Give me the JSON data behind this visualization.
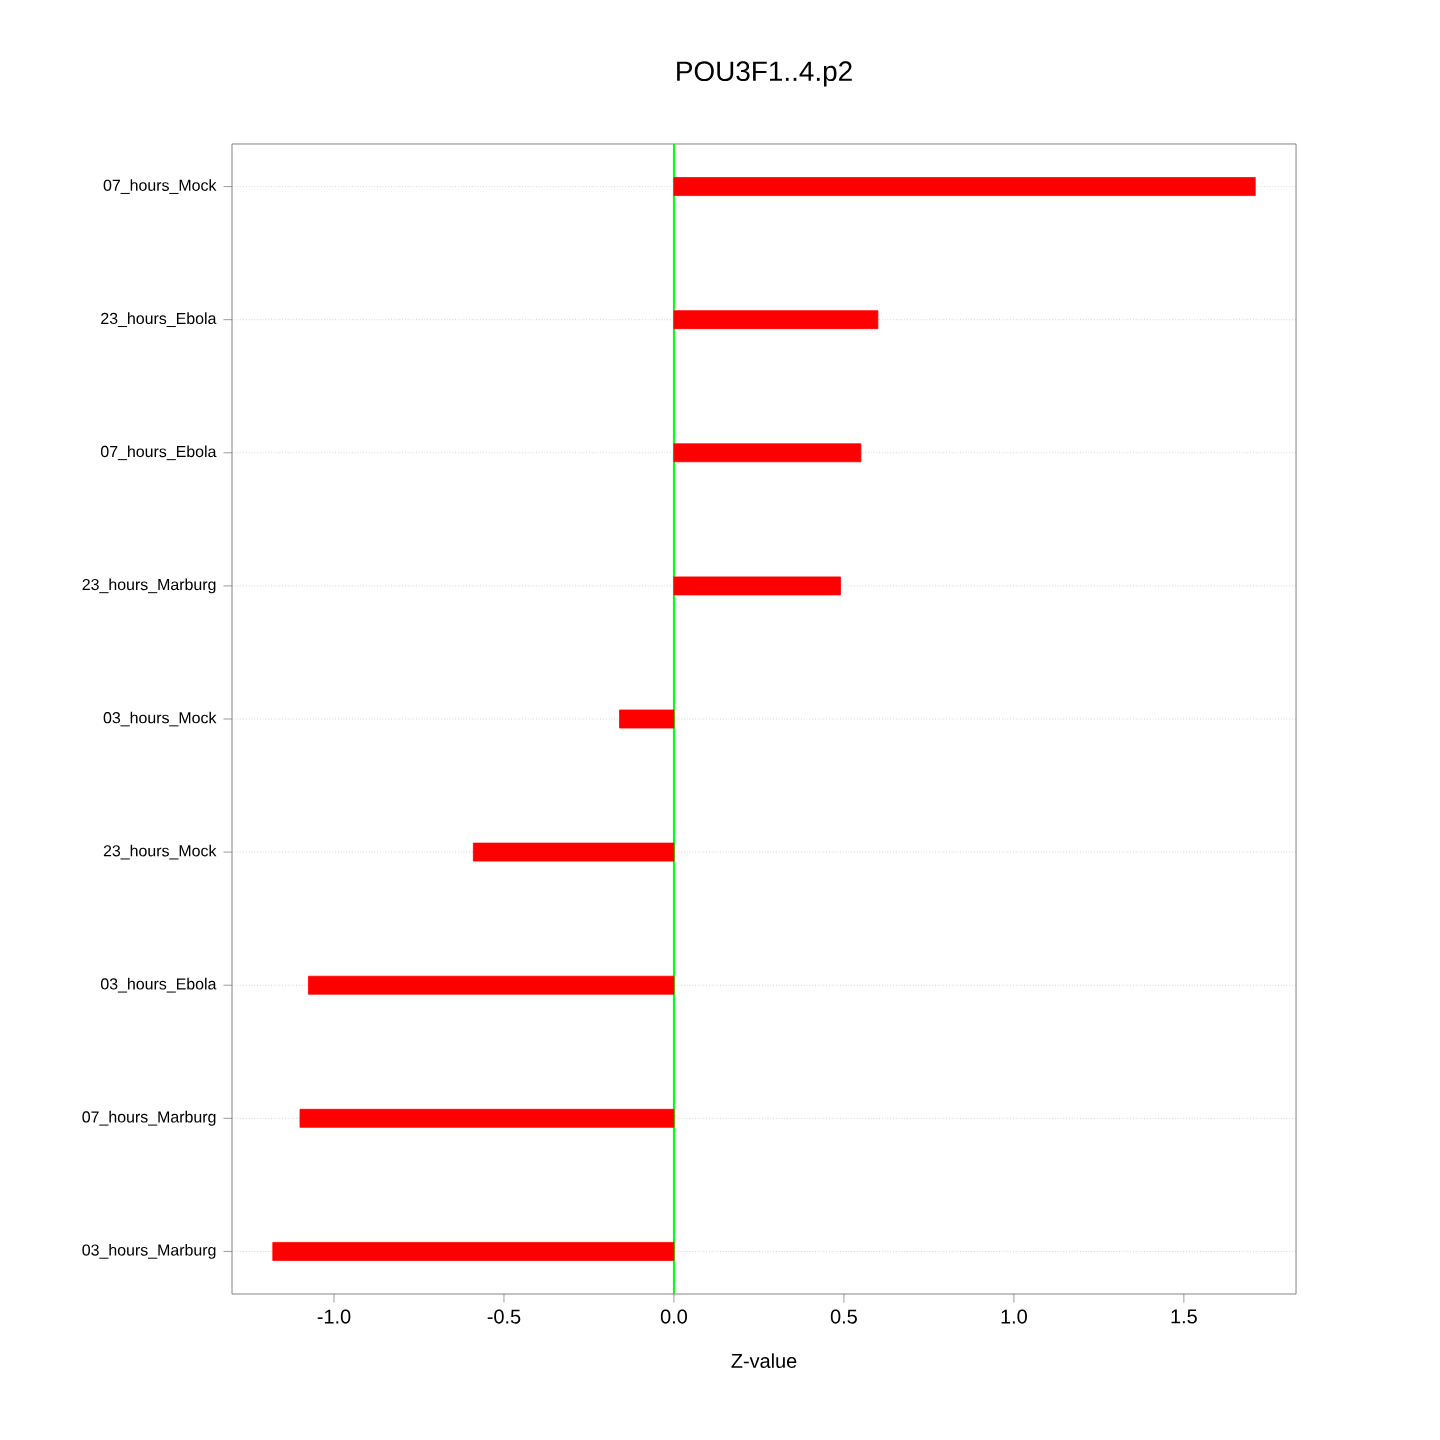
{
  "chart_data": {
    "type": "bar",
    "orientation": "horizontal",
    "title": "POU3F1..4.p2",
    "xlabel": "Z-value",
    "categories": [
      "07_hours_Mock",
      "23_hours_Ebola",
      "07_hours_Ebola",
      "23_hours_Marburg",
      "03_hours_Mock",
      "23_hours_Mock",
      "03_hours_Ebola",
      "07_hours_Marburg",
      "03_hours_Marburg"
    ],
    "values": [
      1.71,
      0.6,
      0.55,
      0.49,
      -0.16,
      -0.59,
      -1.075,
      -1.1,
      -1.18
    ],
    "color": "#ff0000",
    "xlim": [
      -1.3,
      1.83
    ],
    "xticks": [
      {
        "value": -1,
        "label": "-1.0"
      },
      {
        "value": -0.5,
        "label": "-0.5"
      },
      {
        "value": 0,
        "label": "0.0"
      },
      {
        "value": 0.5,
        "label": "0.5"
      },
      {
        "value": 1,
        "label": "1.0"
      },
      {
        "value": 1.5,
        "label": "1.5"
      }
    ],
    "grid": "y",
    "ref_lines": [
      {
        "axis": "x",
        "value": 0,
        "color": "#00ff00"
      }
    ]
  }
}
